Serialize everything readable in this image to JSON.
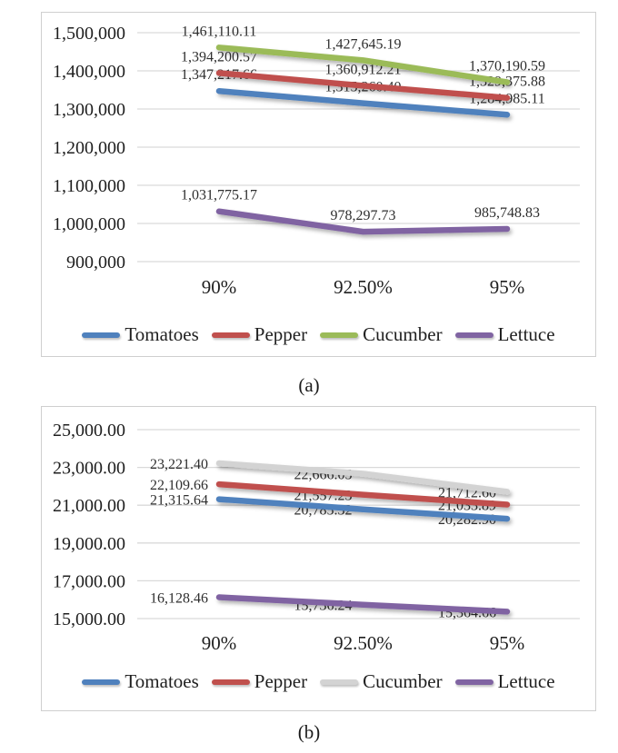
{
  "captions": {
    "a": "(a)",
    "b": "(b)"
  },
  "chart_data": [
    {
      "id": "a",
      "type": "line",
      "title": "",
      "xlabel": "",
      "ylabel": "",
      "categories": [
        "90%",
        "92.50%",
        "95%"
      ],
      "series": [
        {
          "name": "Tomatoes",
          "color": "#4F81BD",
          "values": [
            1347217.66,
            1315260.4,
            1284985.11
          ],
          "labels": [
            "1,347,217.66",
            "1,315,260.40",
            "1,284,985.11"
          ]
        },
        {
          "name": "Pepper",
          "color": "#C0504D",
          "values": [
            1394200.57,
            1360912.21,
            1329375.88
          ],
          "labels": [
            "1,394,200.57",
            "1,360,912.21",
            "1,329,375.88"
          ]
        },
        {
          "name": "Cucumber",
          "color": "#9BBB59",
          "values": [
            1461110.11,
            1427645.19,
            1370190.59
          ],
          "labels": [
            "1,461,110.11",
            "1,427,645.19",
            "1,370,190.59"
          ]
        },
        {
          "name": "Lettuce",
          "color": "#8064A2",
          "values": [
            1031775.17,
            978297.73,
            985748.83
          ],
          "labels": [
            "1,031,775.17",
            "978,297.73",
            "985,748.83"
          ]
        }
      ],
      "y_axis": {
        "min": 900000,
        "max": 1500000,
        "step": 100000,
        "tick_labels": [
          "1,500,000",
          "1,400,000",
          "1,300,000",
          "1,200,000",
          "1,100,000",
          "1,000,000",
          "900,000"
        ]
      },
      "grid": true,
      "data_label_position": "above",
      "legend_position": "bottom"
    },
    {
      "id": "b",
      "type": "line",
      "title": "",
      "xlabel": "",
      "ylabel": "",
      "categories": [
        "90%",
        "92.50%",
        "95%"
      ],
      "series": [
        {
          "name": "Tomatoes",
          "color": "#4F81BD",
          "values": [
            21315.64,
            20785.32,
            20282.9
          ],
          "labels": [
            "21,315.64",
            "20,785.32",
            "20,282.90"
          ]
        },
        {
          "name": "Pepper",
          "color": "#C0504D",
          "values": [
            22109.66,
            21557.23,
            21033.89
          ],
          "labels": [
            "22,109.66",
            "21,557.23",
            "21,033.89"
          ]
        },
        {
          "name": "Cucumber",
          "color": "#D3D3D3",
          "values": [
            23221.4,
            22666.05,
            21712.6
          ],
          "labels": [
            "23,221.40",
            "22,666.05",
            "21,712.60"
          ]
        },
        {
          "name": "Lettuce",
          "color": "#8064A2",
          "values": [
            16128.46,
            15736.24,
            15364.66
          ],
          "labels": [
            "16,128.46",
            "15,736.24",
            "15,364.66"
          ]
        }
      ],
      "y_axis": {
        "min": 15000,
        "max": 25000,
        "step": 2000,
        "tick_labels": [
          "25,000.00",
          "23,000.00",
          "21,000.00",
          "19,000.00",
          "17,000.00",
          "15,000.00"
        ]
      },
      "grid": true,
      "data_label_position": "left",
      "legend_position": "bottom"
    }
  ]
}
